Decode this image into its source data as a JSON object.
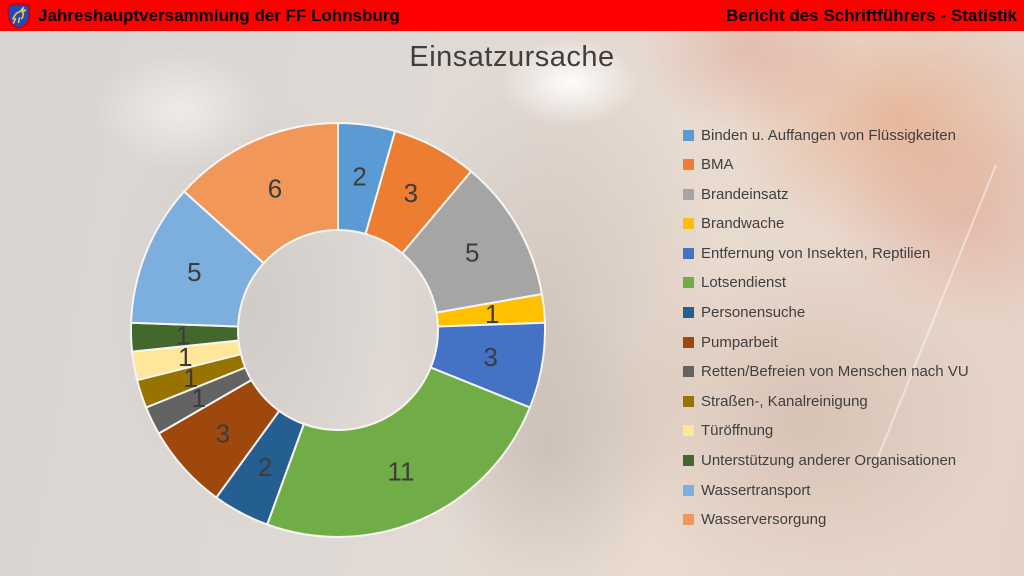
{
  "header": {
    "left_title": "Jahreshauptversammlung der FF Lohnsburg",
    "right_title": "Bericht des Schriftführers - Statistik",
    "bar_color": "#FE0000",
    "crest_icon": "ff-lohnsburg-crest"
  },
  "slide": {
    "title": "Einsatzursache"
  },
  "chart_data": {
    "type": "pie",
    "subtype": "donut",
    "title": "Einsatzursache",
    "legend_position": "right",
    "direction": "clockwise",
    "start_angle_deg": 0,
    "total": 45,
    "data_label_color": "#3C3C3C",
    "slice_border_color": "#F7F5F1",
    "categories": [
      "Binden u. Auffangen von Flüssigkeiten",
      "BMA",
      "Brandeinsatz",
      "Brandwache",
      "Entfernung von Insekten, Reptilien",
      "Lotsendienst",
      "Personensuche",
      "Pumparbeit",
      "Retten/Befreien von Menschen nach VU",
      "Straßen-, Kanalreinigung",
      "Türöffnung",
      "Unterstützung anderer Organisationen",
      "Wassertransport",
      "Wasserversorgung"
    ],
    "values": [
      2,
      3,
      5,
      1,
      3,
      11,
      2,
      3,
      1,
      1,
      1,
      1,
      5,
      6
    ],
    "colors": [
      "#5B9BD5",
      "#ED7D31",
      "#A5A5A5",
      "#FFC000",
      "#4472C4",
      "#70AD47",
      "#255E91",
      "#9E480E",
      "#636363",
      "#997300",
      "#FFE699",
      "#43682B",
      "#7CAFDD",
      "#F1975A"
    ]
  }
}
